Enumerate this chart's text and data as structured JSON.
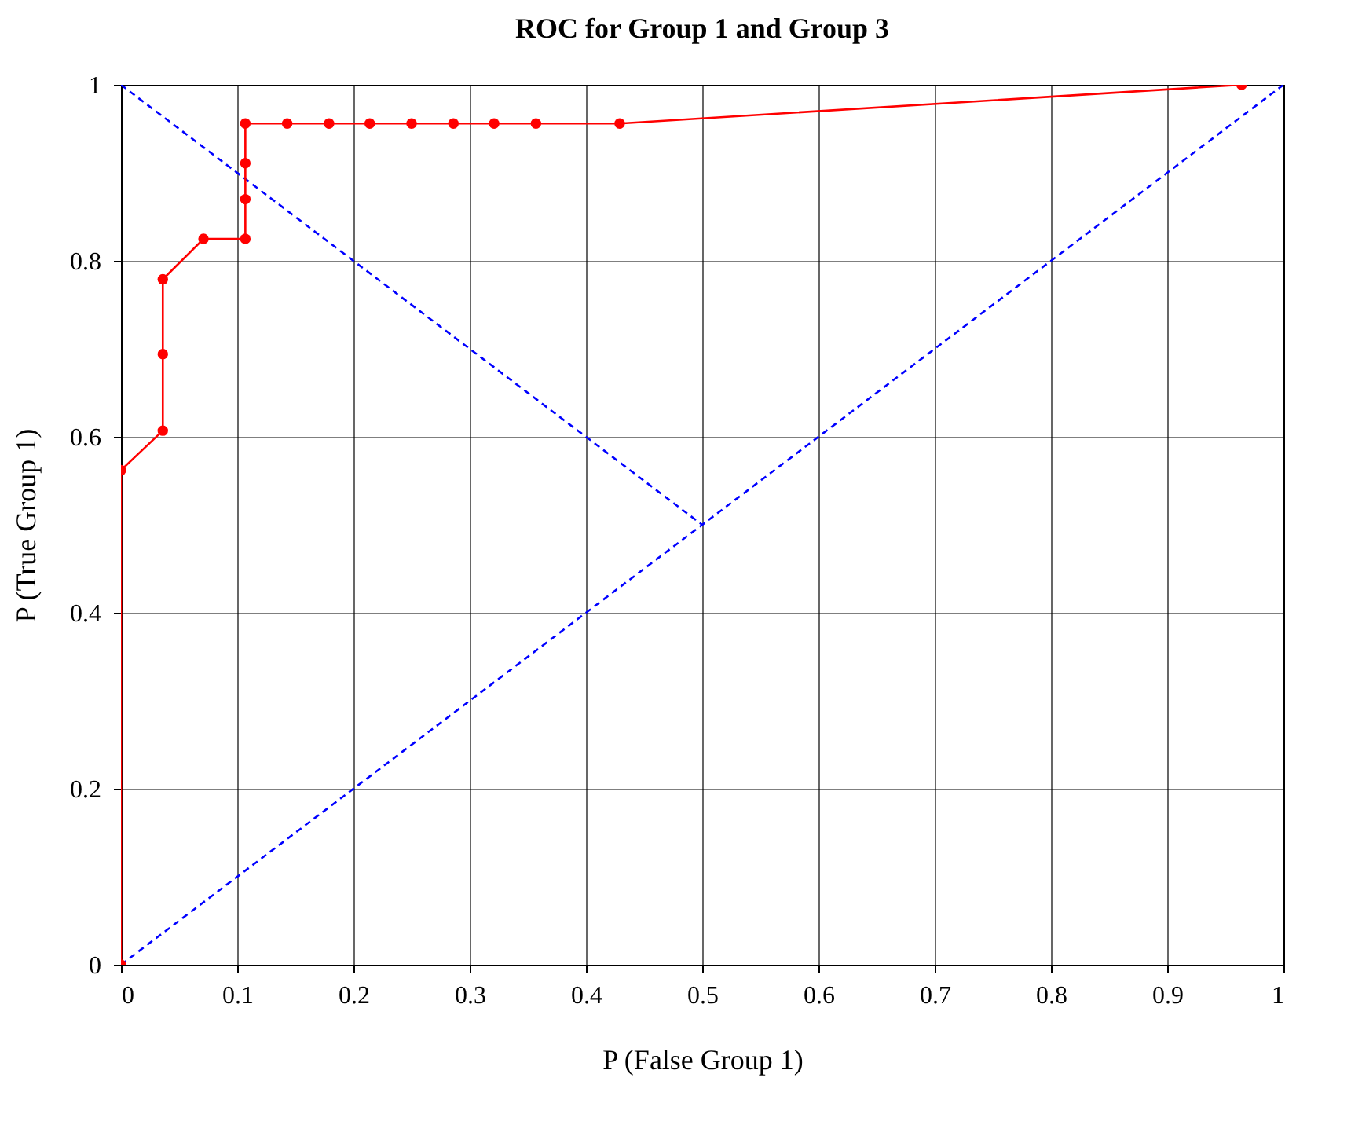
{
  "chart_data": {
    "type": "line",
    "title": "ROC for Group 1 and Group 3",
    "xlabel": "P (False Group 1)",
    "ylabel": "P (True Group 1)",
    "xlim": [
      0,
      1
    ],
    "ylim": [
      0,
      1
    ],
    "xticks": [
      0,
      0.1,
      0.2,
      0.3,
      0.4,
      0.5,
      0.6,
      0.7,
      0.8,
      0.9,
      1
    ],
    "yticks": [
      0,
      0.2,
      0.4,
      0.6,
      0.8,
      1
    ],
    "grid": true,
    "series": [
      {
        "color": "#0000ff",
        "line_style": "dashed",
        "marker": "none",
        "x": [
          0,
          1
        ],
        "values": [
          0,
          1
        ]
      },
      {
        "color": "#0000ff",
        "line_style": "dashed",
        "marker": "none",
        "x": [
          0,
          0.5
        ],
        "values": [
          1,
          0.5
        ]
      },
      {
        "color": "#ff0000",
        "line_style": "solid",
        "marker": "circle",
        "x": [
          0,
          0,
          0.036,
          0.036,
          0.036,
          0.071,
          0.107,
          0.107,
          0.107,
          0.107,
          0.143,
          0.179,
          0.214,
          0.25,
          0.286,
          0.321,
          0.357,
          0.429,
          0.964
        ],
        "values": [
          0,
          0.562,
          0.607,
          0.694,
          0.779,
          0.825,
          0.825,
          0.87,
          0.911,
          0.956,
          0.956,
          0.956,
          0.956,
          0.956,
          0.956,
          0.956,
          0.956,
          0.956,
          1
        ]
      }
    ]
  }
}
